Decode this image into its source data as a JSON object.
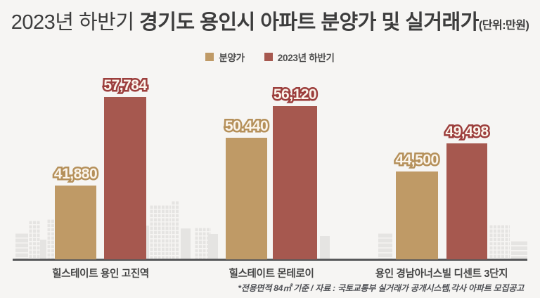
{
  "title": {
    "prefix": "2023년 하반기 ",
    "main": "경기도 용인시 아파트 분양가 및 실거래가",
    "unit": "(단위:만원)"
  },
  "chart_data": {
    "type": "bar",
    "title": "2023년 하반기 경기도 용인시 아파트 분양가 및 실거래가",
    "unit_label": "(단위:만원)",
    "categories": [
      "힐스테이트 용인 고진역",
      "힐스테이트 몬테로이",
      "용인 경남아너스빌 디센트 3단지"
    ],
    "series": [
      {
        "name": "분양가",
        "color": "#bf9a66",
        "label_color": "#b5905a",
        "values": [
          41880,
          50440,
          44500
        ],
        "display_labels": [
          "41,880",
          "50.440",
          "44,500"
        ]
      },
      {
        "name": "2023년 하반기",
        "color": "#a6584f",
        "label_color": "#9c3e3c",
        "values": [
          57784,
          56120,
          49498
        ],
        "display_labels": [
          "57,784",
          "56,120",
          "49,498"
        ]
      }
    ],
    "legend_position": "top-center",
    "grid": false,
    "value_axis_hidden": true,
    "value_axis_baseline_estimate": 28750
  },
  "footnote": "*전용면적 84㎡ 기준 / 자료 : 국토교통부 실거래가 공개시스템,각사 아파트 모집공고"
}
